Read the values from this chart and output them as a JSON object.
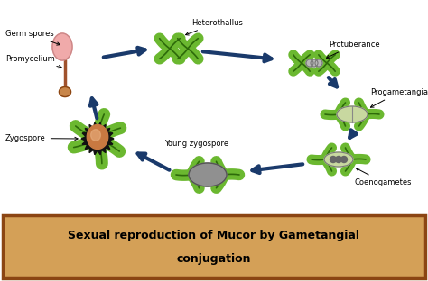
{
  "title_line1": "Sexual reproduction of Mucor by Gametangial",
  "title_line2": "conjugation",
  "title_bg": "#d4a057",
  "title_border": "#8B4513",
  "bg_color": "#ffffff",
  "labels": {
    "germ_spores": "Germ spores",
    "promycelium": "Promycelium",
    "heterothallus": "Heterothallus",
    "protuberance": "Protuberance",
    "progametangia": "Progametangia",
    "coenogametes": "Coenogametes",
    "young_zygospore": "Young zygospore",
    "zygospore": "Zygospore"
  },
  "green_color": "#5aaa20",
  "dark_green": "#2d6a0a",
  "arrow_color": "#1a3a6b",
  "hyphae_fill": "#6bb830",
  "spore_fill": "#f0aaaa",
  "stem_color": "#a0522d",
  "zygospore_fill": "#c87941",
  "zygospore_outer": "#111111",
  "young_zygo_fill": "#909090",
  "protuberance_fill": "#b8b8b8",
  "progam_fill": "#c8d8a0",
  "title_fontsize": 9.0
}
